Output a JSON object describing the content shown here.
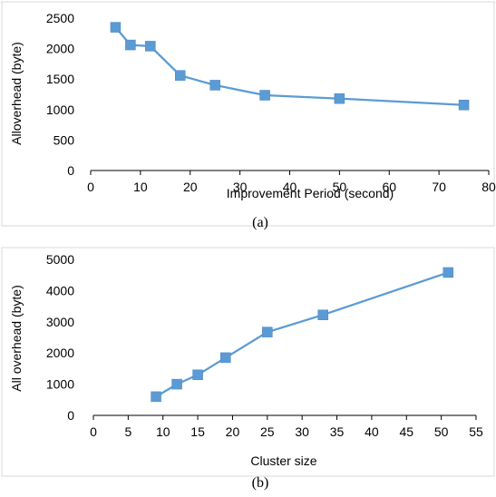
{
  "colors": {
    "series": "#5b9bd5",
    "frame": "#d9d9d9",
    "axis": "#000000"
  },
  "chart_data": [
    {
      "type": "line",
      "caption": "(a)",
      "xlabel": "Improvement  Period (second)",
      "ylabel": "Alloverhead (byte)",
      "xlim": [
        0,
        80
      ],
      "ylim": [
        0,
        2500
      ],
      "xticks": [
        0,
        10,
        20,
        30,
        40,
        50,
        60,
        70,
        80
      ],
      "yticks": [
        0,
        500,
        1000,
        1500,
        2000,
        2500
      ],
      "marker": "square",
      "grid": false,
      "legend": "none",
      "series": [
        {
          "x": [
            5,
            8,
            12,
            18,
            25,
            35,
            50,
            75
          ],
          "y": [
            2350,
            2060,
            2040,
            1560,
            1400,
            1235,
            1180,
            1075
          ]
        }
      ]
    },
    {
      "type": "line",
      "caption": "(b)",
      "xlabel": "Cluster size",
      "ylabel": "All overhead (byte)",
      "xlim": [
        0,
        55
      ],
      "ylim": [
        0,
        5000
      ],
      "xticks": [
        0,
        5,
        10,
        15,
        20,
        25,
        30,
        35,
        40,
        45,
        50,
        55
      ],
      "yticks": [
        0,
        1000,
        2000,
        3000,
        4000,
        5000
      ],
      "marker": "square",
      "grid": false,
      "legend": "none",
      "series": [
        {
          "x": [
            9,
            12,
            15,
            19,
            25,
            33,
            51
          ],
          "y": [
            600,
            1000,
            1300,
            1850,
            2670,
            3220,
            4580
          ]
        }
      ]
    }
  ]
}
